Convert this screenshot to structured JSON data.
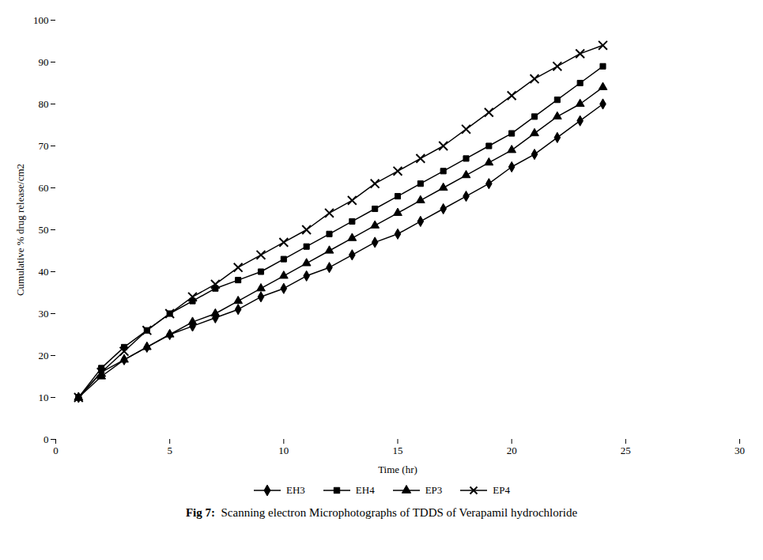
{
  "chart_data": {
    "type": "line",
    "x_label": "Time (hr)",
    "y_label": "Cumulative % drug release/cm2",
    "caption_bold": "Fig 7:",
    "caption": "  Scanning electron Microphotographs of TDDS of Verapamil hydrochloride",
    "x": [
      1,
      2,
      3,
      4,
      5,
      6,
      7,
      8,
      9,
      10,
      11,
      12,
      13,
      14,
      15,
      16,
      17,
      18,
      19,
      20,
      21,
      22,
      23,
      24
    ],
    "series": [
      {
        "name": "EH3",
        "color": "#000000",
        "marker": "diamond",
        "line_style": "solid",
        "values": [
          10,
          16,
          19,
          22,
          25,
          27,
          29,
          31,
          34,
          36,
          39,
          41,
          44,
          47,
          49,
          52,
          55,
          58,
          61,
          65,
          68,
          72,
          76,
          80
        ]
      },
      {
        "name": "EH4",
        "color": "#000000",
        "marker": "square",
        "line_style": "solid",
        "values": [
          10,
          17,
          22,
          26,
          30,
          33,
          36,
          38,
          40,
          43,
          46,
          49,
          52,
          55,
          58,
          61,
          64,
          67,
          70,
          73,
          77,
          81,
          85,
          89
        ]
      },
      {
        "name": "EP3",
        "color": "#000000",
        "marker": "triangle",
        "line_style": "solid",
        "values": [
          10,
          15,
          19,
          22,
          25,
          28,
          30,
          33,
          36,
          39,
          42,
          45,
          48,
          51,
          54,
          57,
          60,
          63,
          66,
          69,
          73,
          77,
          80,
          84
        ]
      },
      {
        "name": "EP4",
        "color": "#000000",
        "marker": "x",
        "line_style": "solid",
        "values": [
          10,
          16,
          21,
          26,
          30,
          34,
          37,
          41,
          44,
          47,
          50,
          54,
          57,
          61,
          64,
          67,
          70,
          74,
          78,
          82,
          86,
          89,
          92,
          94
        ]
      }
    ],
    "xlim": [
      0,
      30
    ],
    "ylim": [
      0,
      100
    ],
    "xticks": [
      0,
      5,
      10,
      15,
      20,
      25,
      30
    ],
    "yticks": [
      0,
      10,
      20,
      30,
      40,
      50,
      60,
      70,
      80,
      90,
      100
    ],
    "grid": false,
    "legend": "bottom"
  }
}
